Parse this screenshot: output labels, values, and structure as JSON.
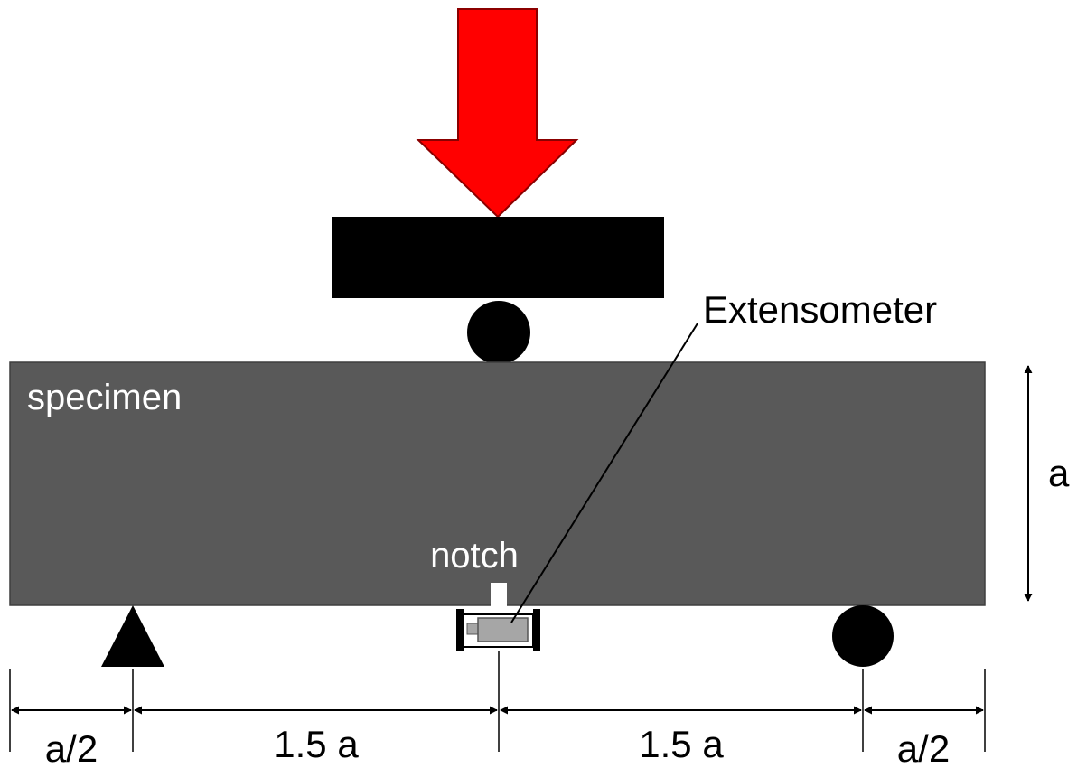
{
  "labels": {
    "specimen": "specimen",
    "notch": "notch",
    "extensometer": "Extensometer",
    "height": "a",
    "dim_left_end": "a/2",
    "dim_left_span": "1.5 a",
    "dim_right_span": "1.5 a",
    "dim_right_end": "a/2"
  },
  "colors": {
    "load_arrow": "#ff0000",
    "specimen": "#595959",
    "supports": "#000000",
    "extensometer_body": "#a6a6a6",
    "specimen_text": "#ffffff"
  }
}
